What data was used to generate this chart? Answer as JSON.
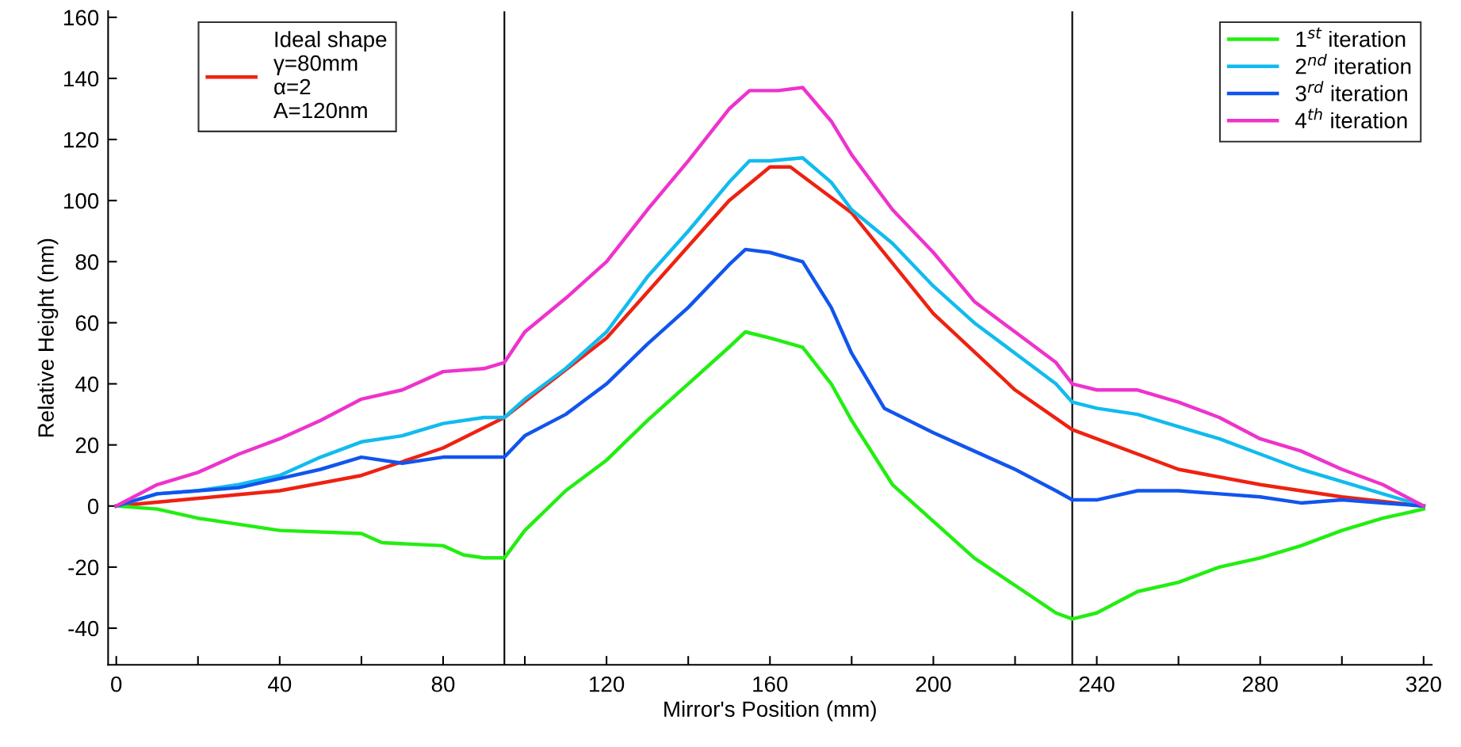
{
  "chart_data": {
    "type": "line",
    "xlabel": "Mirror's Position (mm)",
    "ylabel": "Relative Height (nm)",
    "xlim": [
      -2,
      322
    ],
    "ylim": [
      -52,
      162
    ],
    "xticks": [
      0,
      {
        "value": 20,
        "label": null
      },
      40,
      {
        "value": 60,
        "label": null
      },
      80,
      {
        "value": 100,
        "label": null
      },
      120,
      {
        "value": 140,
        "label": null
      },
      160,
      {
        "value": 180,
        "label": null
      },
      200,
      {
        "value": 220,
        "label": null
      },
      240,
      {
        "value": 260,
        "label": null
      },
      280,
      {
        "value": 300,
        "label": null
      },
      320
    ],
    "yticks": [
      -40,
      -20,
      0,
      20,
      40,
      60,
      80,
      100,
      120,
      140,
      160
    ],
    "grid": false,
    "legend": "top right",
    "line_style": "solid",
    "marker": "none",
    "ref_lines": [
      {
        "axis": "x",
        "value": 95,
        "color": "#000000"
      },
      {
        "axis": "x",
        "value": 234,
        "color": "#000000"
      }
    ],
    "series": [
      {
        "name": "Ideal shape\nγ=80mm\nα=2\nA=120nm",
        "color": "#ee2211",
        "x": [
          0,
          40,
          60,
          80,
          95,
          120,
          140,
          150,
          160,
          165,
          180,
          200,
          220,
          234,
          260,
          280,
          300,
          320
        ],
        "values": [
          0,
          5,
          10,
          19,
          29,
          55,
          85,
          100,
          111,
          111,
          96,
          63,
          38,
          25,
          12,
          7,
          3,
          0
        ]
      },
      {
        "name": "1$^{st}$ iteration",
        "color": "#22ee11",
        "x": [
          0,
          10,
          20,
          30,
          40,
          60,
          65,
          80,
          85,
          90,
          95,
          100,
          110,
          120,
          130,
          140,
          150,
          154,
          160,
          168,
          175,
          180,
          190,
          200,
          210,
          220,
          230,
          234,
          240,
          250,
          260,
          270,
          280,
          290,
          300,
          310,
          320
        ],
        "values": [
          0,
          -1,
          -4,
          -6,
          -8,
          -9,
          -12,
          -13,
          -16,
          -17,
          -17,
          -8,
          5,
          15,
          28,
          40,
          52,
          57,
          55,
          52,
          40,
          28,
          7,
          -5,
          -17,
          -26,
          -35,
          -37,
          -35,
          -28,
          -25,
          -20,
          -17,
          -13,
          -8,
          -4,
          -1
        ]
      },
      {
        "name": "2$^{nd}$ iteration",
        "color": "#11bbee",
        "x": [
          0,
          10,
          20,
          30,
          40,
          50,
          60,
          70,
          80,
          90,
          95,
          100,
          110,
          120,
          130,
          140,
          150,
          155,
          160,
          168,
          175,
          180,
          190,
          200,
          210,
          220,
          230,
          234,
          240,
          250,
          260,
          270,
          280,
          290,
          300,
          310,
          320
        ],
        "values": [
          0,
          4,
          5,
          7,
          10,
          16,
          21,
          23,
          27,
          29,
          29,
          35,
          45,
          57,
          75,
          90,
          106,
          113,
          113,
          114,
          106,
          97,
          86,
          72,
          60,
          50,
          40,
          34,
          32,
          30,
          26,
          22,
          17,
          12,
          8,
          4,
          0
        ]
      },
      {
        "name": "3$^{rd}$ iteration",
        "color": "#1155ee",
        "x": [
          0,
          10,
          20,
          30,
          40,
          50,
          60,
          70,
          80,
          90,
          95,
          100,
          110,
          120,
          130,
          140,
          150,
          154,
          160,
          168,
          175,
          180,
          188,
          200,
          210,
          220,
          230,
          234,
          240,
          250,
          260,
          270,
          280,
          290,
          300,
          310,
          320
        ],
        "values": [
          0,
          4,
          5,
          6,
          9,
          12,
          16,
          14,
          16,
          16,
          16,
          23,
          30,
          40,
          53,
          65,
          79,
          84,
          83,
          80,
          65,
          50,
          32,
          24,
          18,
          12,
          5,
          2,
          2,
          5,
          5,
          4,
          3,
          1,
          2,
          1,
          0
        ]
      },
      {
        "name": "4$^{th}$ iteration",
        "color": "#ee33cc",
        "x": [
          0,
          10,
          20,
          30,
          40,
          50,
          60,
          70,
          80,
          90,
          95,
          100,
          110,
          120,
          130,
          140,
          150,
          155,
          162,
          168,
          175,
          180,
          190,
          200,
          210,
          220,
          230,
          234,
          240,
          250,
          260,
          270,
          280,
          290,
          300,
          310,
          320
        ],
        "values": [
          0,
          7,
          11,
          17,
          22,
          28,
          35,
          38,
          44,
          45,
          47,
          57,
          68,
          80,
          97,
          113,
          130,
          136,
          136,
          137,
          126,
          115,
          97,
          83,
          67,
          57,
          47,
          40,
          38,
          38,
          34,
          29,
          22,
          18,
          12,
          7,
          0
        ]
      }
    ]
  }
}
